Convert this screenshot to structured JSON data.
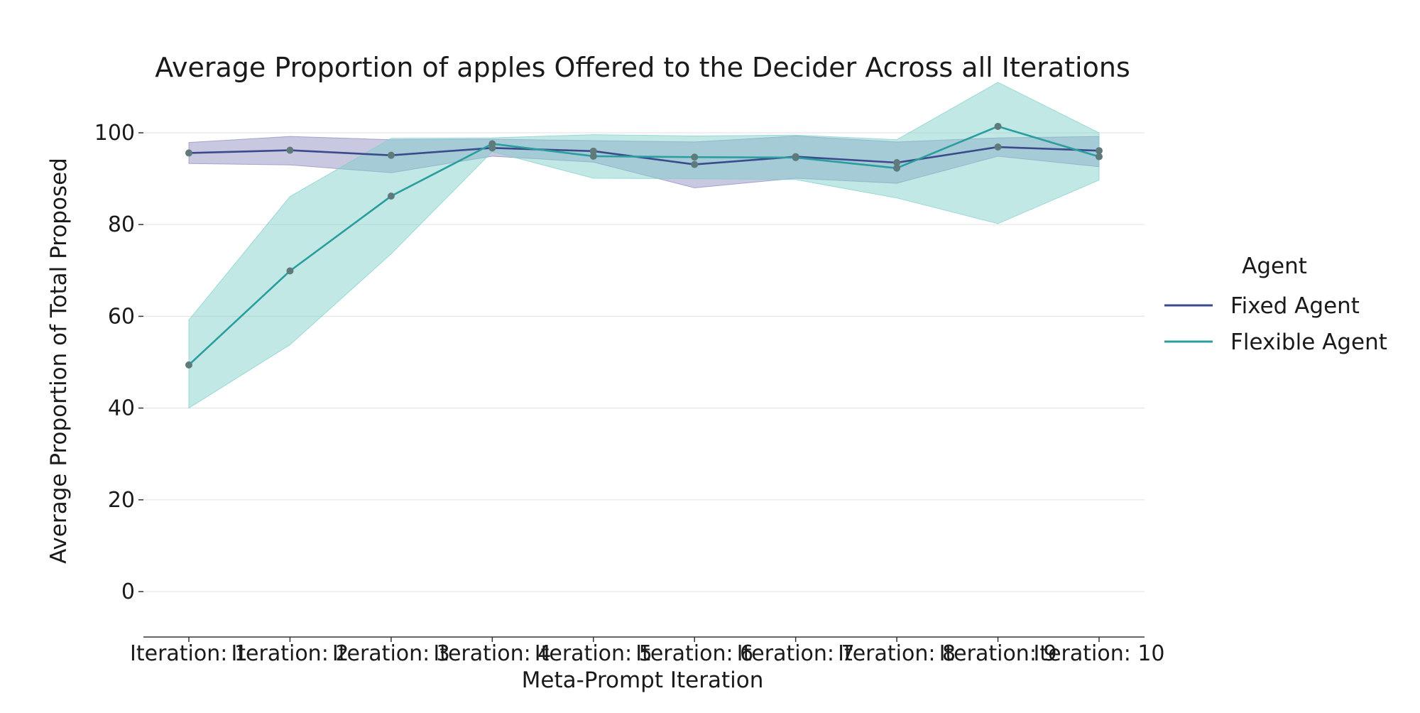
{
  "chart_data": {
    "type": "line",
    "title": "Average Proportion of apples Offered to the Decider Across all Iterations",
    "xlabel": "Meta-Prompt Iteration",
    "ylabel": "Average Proportion of Total Proposed",
    "categories": [
      "Iteration: 1",
      "Iteration: 2",
      "Iteration: 3",
      "Iteration: 4",
      "Iteration: 5",
      "Iteration: 6",
      "Iteration: 7",
      "Iteration: 8",
      "Iteration: 9",
      "Iteration: 10"
    ],
    "yticks": [
      0,
      20,
      40,
      60,
      80,
      100
    ],
    "ylim": [
      -10,
      111
    ],
    "grid": true,
    "legend": {
      "title": "Agent",
      "placement": "right"
    },
    "series": [
      {
        "name": "Fixed Agent",
        "color": "#3b4a8c",
        "band_color": "#8c8cbf",
        "values": [
          95.6,
          96.2,
          95.1,
          96.7,
          96.0,
          93.1,
          94.8,
          93.5,
          96.9,
          96.1
        ],
        "ci_low": [
          93.3,
          93.0,
          91.3,
          94.9,
          93.6,
          88.0,
          90.1,
          89.0,
          94.9,
          92.6
        ],
        "ci_high": [
          97.9,
          99.2,
          98.5,
          98.6,
          98.3,
          98.0,
          99.3,
          98.0,
          98.9,
          99.2
        ]
      },
      {
        "name": "Flexible Agent",
        "color": "#2a9d9f",
        "band_color": "#7fcfcb",
        "values": [
          49.4,
          69.9,
          86.2,
          97.6,
          94.9,
          94.7,
          94.6,
          92.3,
          101.4,
          94.8
        ],
        "ci_low": [
          40.0,
          53.8,
          73.6,
          95.9,
          90.1,
          90.0,
          89.8,
          85.8,
          80.2,
          89.7
        ],
        "ci_high": [
          59.2,
          86.1,
          98.8,
          98.9,
          99.6,
          99.3,
          99.5,
          98.5,
          111.0,
          100.0
        ]
      }
    ]
  }
}
